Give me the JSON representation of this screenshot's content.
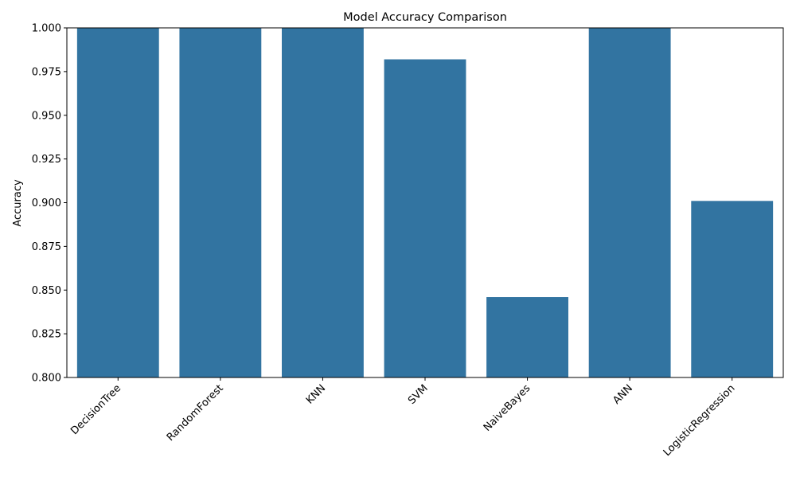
{
  "chart_data": {
    "type": "bar",
    "title": "Model Accuracy Comparison",
    "xlabel": "",
    "ylabel": "Accuracy",
    "categories": [
      "DecisionTree",
      "RandomForest",
      "KNN",
      "SVM",
      "NaiveBayes",
      "ANN",
      "LogisticRegression"
    ],
    "values": [
      1.0,
      1.0,
      1.0,
      0.982,
      0.846,
      1.0,
      0.901
    ],
    "ylim": [
      0.8,
      1.0
    ],
    "yticks": [
      "0.800",
      "0.825",
      "0.850",
      "0.875",
      "0.900",
      "0.925",
      "0.950",
      "0.975",
      "1.000"
    ],
    "grid": false,
    "legend": "none",
    "bar_color": "#3274a1",
    "xtick_rotation_deg": 45
  }
}
